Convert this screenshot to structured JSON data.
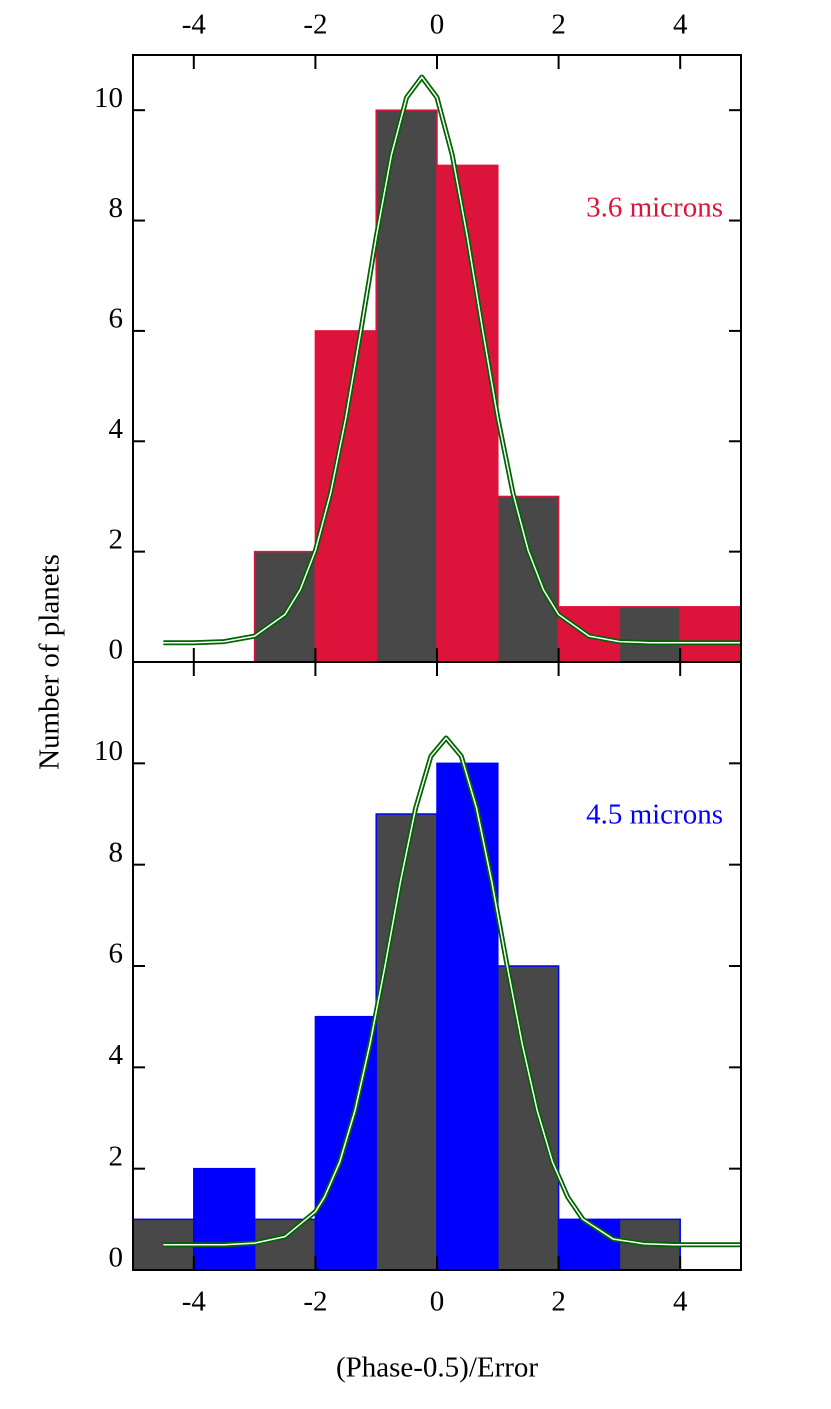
{
  "chart_data": [
    {
      "type": "histogram",
      "ylabel": "Number of planets",
      "xaxis_position": "top",
      "bins": [
        -5,
        -4,
        -3,
        -2,
        -1,
        0,
        1,
        2,
        3,
        4,
        5
      ],
      "values": [
        0,
        0,
        2,
        6,
        10,
        9,
        3,
        1,
        1,
        1
      ],
      "bar_colors": [
        "#484848",
        "#dc143c"
      ],
      "edge_color": "#dc143c",
      "annotation": {
        "text": "3.6 microns",
        "color": "#dc143c"
      },
      "fit": {
        "color": "#006400",
        "x": [
          -4.5,
          -4,
          -3.5,
          -3,
          -2.5,
          -2.25,
          -2,
          -1.75,
          -1.5,
          -1.25,
          -1,
          -0.75,
          -0.5,
          -0.25,
          0,
          0.25,
          0.5,
          0.75,
          1,
          1.25,
          1.5,
          1.75,
          2,
          2.5,
          3,
          3.5,
          4,
          4.5,
          5
        ],
        "values": [
          0.35,
          0.35,
          0.37,
          0.47,
          0.86,
          1.31,
          2.02,
          3.06,
          4.42,
          6.02,
          7.7,
          9.19,
          10.23,
          10.6,
          10.23,
          9.19,
          7.7,
          6.02,
          4.42,
          3.06,
          2.02,
          1.31,
          0.86,
          0.47,
          0.37,
          0.35,
          0.35,
          0.35,
          0.35
        ]
      },
      "xlim": [
        -5,
        5
      ],
      "xticks": [
        -4,
        -2,
        0,
        2,
        4
      ],
      "ylim": [
        0,
        11
      ],
      "yticks": [
        0,
        2,
        4,
        6,
        8,
        10
      ]
    },
    {
      "type": "histogram",
      "xlabel": "(Phase-0.5)/Error",
      "xaxis_position": "bottom",
      "bins": [
        -5,
        -4,
        -3,
        -2,
        -1,
        0,
        1,
        2,
        3,
        4,
        5
      ],
      "values": [
        1,
        2,
        1,
        5,
        9,
        10,
        6,
        1,
        1,
        0
      ],
      "bar_colors": [
        "#484848",
        "#0000ff"
      ],
      "edge_color": "#0000ff",
      "annotation": {
        "text": "4.5 microns",
        "color": "#0000ff"
      },
      "fit": {
        "color": "#006400",
        "x": [
          -4.5,
          -4,
          -3.5,
          -3,
          -2.5,
          -2,
          -1.85,
          -1.6,
          -1.35,
          -1.1,
          -0.85,
          -0.6,
          -0.35,
          -0.1,
          0.15,
          0.4,
          0.65,
          0.9,
          1.15,
          1.4,
          1.65,
          1.9,
          2.15,
          2.4,
          2.9,
          3.4,
          3.9,
          4.4,
          5
        ],
        "values": [
          0.5,
          0.5,
          0.5,
          0.53,
          0.66,
          1.15,
          1.44,
          2.13,
          3.14,
          4.47,
          6.03,
          7.67,
          9.12,
          10.14,
          10.5,
          10.14,
          9.12,
          7.67,
          6.03,
          4.47,
          3.14,
          2.13,
          1.44,
          1.0,
          0.61,
          0.52,
          0.5,
          0.5,
          0.5
        ]
      },
      "xlim": [
        -5,
        5
      ],
      "xticks": [
        -4,
        -2,
        0,
        2,
        4
      ],
      "ylim": [
        0,
        12
      ],
      "yticks": [
        0,
        2,
        4,
        6,
        8,
        10
      ]
    }
  ]
}
